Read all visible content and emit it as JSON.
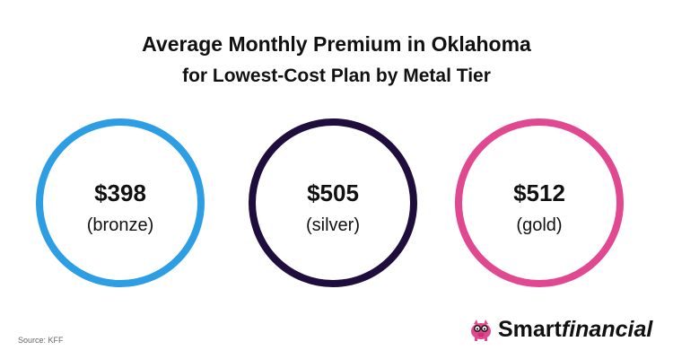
{
  "chart_data": {
    "type": "table",
    "title": "Average Monthly Premium in Oklahoma",
    "subtitle": "for Lowest-Cost Plan by Metal Tier",
    "categories": [
      "(bronze)",
      "(silver)",
      "(gold)"
    ],
    "values": [
      398,
      505,
      512
    ],
    "labels": [
      "$398",
      "$505",
      "$512"
    ],
    "colors": [
      "#2e9ee4",
      "#1e0d3d",
      "#e0488f"
    ]
  },
  "footer": {
    "source": "Source: KFF",
    "brand_part1": "Smart",
    "brand_part2": "financial",
    "logo_icon": "piggy-bank-with-glasses"
  }
}
